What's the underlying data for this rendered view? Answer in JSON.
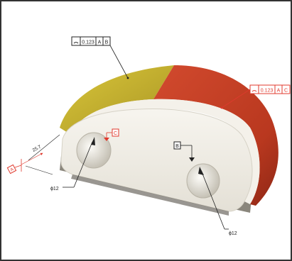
{
  "annotations": {
    "profile_top": {
      "symbol": "profile-of-surface-icon",
      "tolerance": "0.123",
      "datums": [
        "A",
        "B"
      ]
    },
    "profile_right": {
      "symbol": "profile-of-surface-icon",
      "tolerance": "0.123",
      "datums": [
        "A",
        "C"
      ]
    },
    "datum_c": "C",
    "datum_b": "B",
    "datum_a": "A",
    "dim_left_hole": "ɸ12",
    "dim_right_hole": "ɸ12",
    "dim_length": "25.7"
  },
  "colors": {
    "frame": "#333333",
    "face_cream": "#f1eee6",
    "surface_yellow": "#c4b12a",
    "surface_red": "#c23f26",
    "annotation_red": "#e03a2e",
    "annotation_black": "#222222"
  }
}
